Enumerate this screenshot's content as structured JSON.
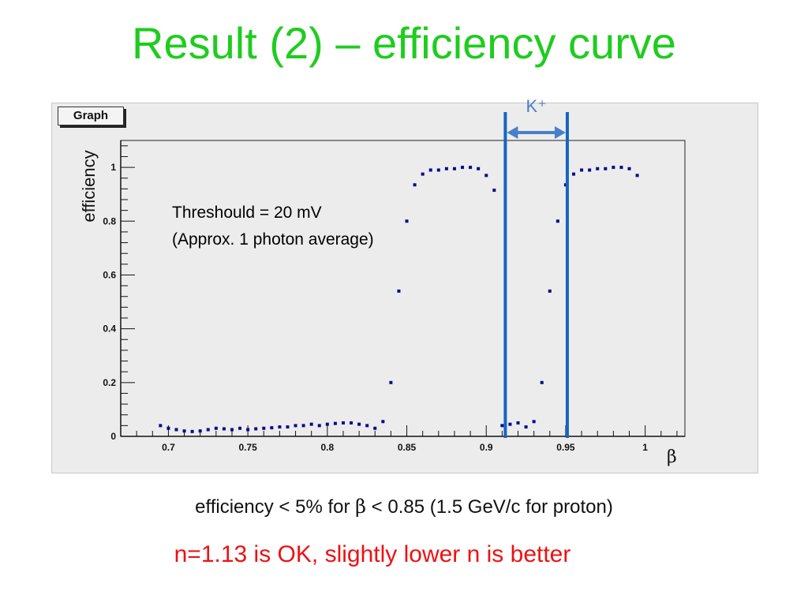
{
  "slide": {
    "title": "Result (2) – efficiency curve",
    "graph_tag": "Graph",
    "annotation_line1": "Threshould = 20 mV",
    "annotation_line2": "(Approx. 1 photon average)",
    "band_label": "K⁺",
    "caption_prefix": "efficiency < 5% for ",
    "caption_symbol": "β",
    "caption_suffix": " < 0.85 (1.5 GeV/c for proton)",
    "conclusion": "n=1.13 is OK, slightly lower n is better"
  },
  "colors": {
    "title": "#1fcc1f",
    "points": "#0a0a8c",
    "band_lines": "#1565c0",
    "band_arrow": "#4a7ec8",
    "conclusion": "#ee1111"
  },
  "chart_data": {
    "type": "scatter",
    "xlabel": "β",
    "ylabel": "efficiency",
    "xlim": [
      0.67,
      1.025
    ],
    "ylim": [
      0,
      1.1
    ],
    "xticks": [
      0.7,
      0.75,
      0.8,
      0.85,
      0.9,
      0.95,
      1
    ],
    "xtick_labels": [
      "0.7",
      "0.75",
      "0.8",
      "0.85",
      "0.9",
      "0.95",
      "1"
    ],
    "yticks": [
      0,
      0.2,
      0.4,
      0.6,
      0.8,
      1
    ],
    "ytick_labels": [
      "0",
      "0.2",
      "0.4",
      "0.6",
      "0.8",
      "1"
    ],
    "grid": false,
    "series": [
      {
        "x": [
          0.695,
          0.7,
          0.705,
          0.71,
          0.715,
          0.72,
          0.725,
          0.73,
          0.735,
          0.74,
          0.745,
          0.75,
          0.755,
          0.76,
          0.765,
          0.77,
          0.775,
          0.78,
          0.785,
          0.79,
          0.795,
          0.8,
          0.805,
          0.81,
          0.815,
          0.82,
          0.825,
          0.83,
          0.835,
          0.84,
          0.845,
          0.85,
          0.855,
          0.86,
          0.865,
          0.87,
          0.875,
          0.88,
          0.885,
          0.89,
          0.895,
          0.9,
          0.905,
          0.91,
          0.915,
          0.92,
          0.925,
          0.93,
          0.935,
          0.94,
          0.945,
          0.95,
          0.955,
          0.96,
          0.965,
          0.97,
          0.975,
          0.98,
          0.985,
          0.99,
          0.995
        ],
        "y": [
          0.04,
          0.03,
          0.025,
          0.02,
          0.018,
          0.02,
          0.025,
          0.03,
          0.028,
          0.025,
          0.03,
          0.025,
          0.028,
          0.03,
          0.032,
          0.035,
          0.035,
          0.04,
          0.04,
          0.045,
          0.04,
          0.045,
          0.048,
          0.05,
          0.05,
          0.045,
          0.04,
          0.03,
          0.055,
          0.2,
          0.54,
          0.8,
          0.935,
          0.975,
          0.99,
          0.99,
          0.995,
          0.995,
          1.0,
          1.0,
          0.995,
          0.97,
          0.915,
          0.04,
          0.045,
          0.05,
          0.035,
          0.055,
          0.2,
          0.54,
          0.8,
          0.935,
          0.975,
          0.99,
          0.99,
          0.995,
          0.995,
          1.0,
          1.0,
          0.995,
          0.97
        ]
      }
    ],
    "band": {
      "x_from": 0.912,
      "x_to": 0.951,
      "label": "K⁺"
    }
  }
}
